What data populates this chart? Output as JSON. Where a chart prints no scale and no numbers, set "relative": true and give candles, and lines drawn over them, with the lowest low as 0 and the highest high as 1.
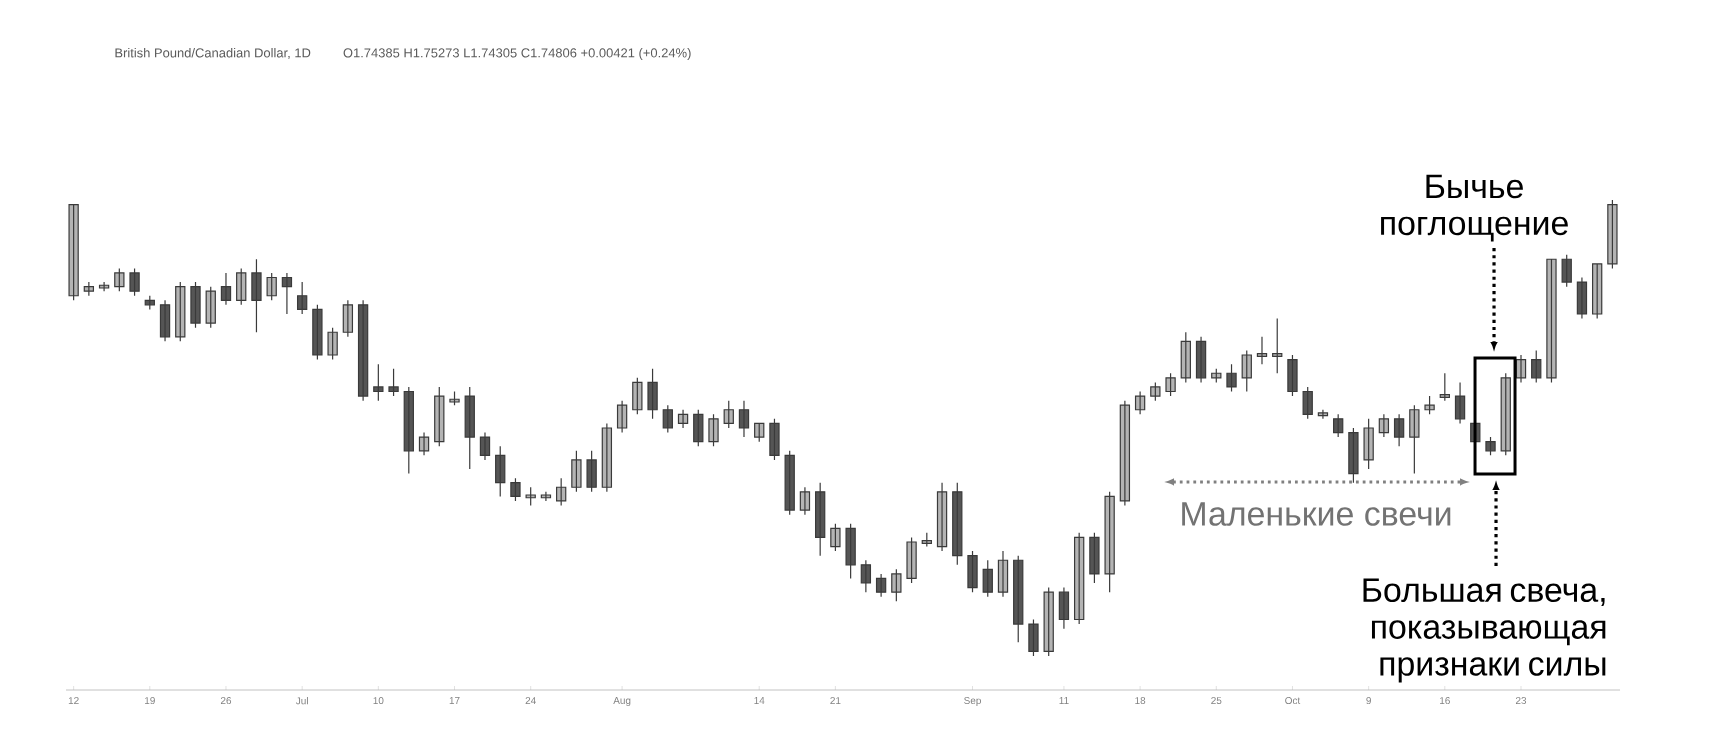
{
  "chart_data": {
    "type": "candlestick",
    "title": "British Pound/Canadian Dollar, 1D",
    "subtitle": "O1.74385 H1.75273 L1.74305 C1.74806 +0.00421 (+0.24%)",
    "relative": true,
    "categories": [
      "12",
      null,
      null,
      null,
      null,
      "19",
      null,
      null,
      null,
      null,
      "26",
      null,
      null,
      null,
      null,
      "Jul",
      null,
      null,
      null,
      null,
      "10",
      null,
      null,
      null,
      null,
      "17",
      null,
      null,
      null,
      null,
      "24",
      null,
      null,
      null,
      null,
      null,
      "Aug",
      null,
      null,
      null,
      null,
      null,
      null,
      null,
      null,
      "14",
      null,
      null,
      null,
      null,
      "21",
      null,
      null,
      null,
      null,
      null,
      null,
      null,
      null,
      "Sep",
      null,
      null,
      null,
      null,
      null,
      "11",
      null,
      null,
      null,
      null,
      "18",
      null,
      null,
      null,
      null,
      "25",
      null,
      null,
      null,
      null,
      "Oct",
      null,
      null,
      null,
      null,
      "9",
      null,
      null,
      null,
      null,
      "16",
      null,
      null,
      null,
      null,
      "23",
      null,
      null,
      null,
      null,
      null,
      null
    ],
    "ohlc": [
      [
        0.79,
        0.99,
        0.78,
        0.99
      ],
      [
        0.8,
        0.82,
        0.79,
        0.81
      ],
      [
        0.81,
        0.82,
        0.8,
        0.81
      ],
      [
        0.81,
        0.85,
        0.8,
        0.84
      ],
      [
        0.84,
        0.85,
        0.79,
        0.8
      ],
      [
        0.78,
        0.79,
        0.76,
        0.77
      ],
      [
        0.77,
        0.78,
        0.69,
        0.7
      ],
      [
        0.7,
        0.82,
        0.69,
        0.81
      ],
      [
        0.81,
        0.82,
        0.72,
        0.73
      ],
      [
        0.73,
        0.81,
        0.72,
        0.8
      ],
      [
        0.81,
        0.84,
        0.77,
        0.78
      ],
      [
        0.78,
        0.85,
        0.77,
        0.84
      ],
      [
        0.84,
        0.87,
        0.71,
        0.78
      ],
      [
        0.79,
        0.84,
        0.78,
        0.83
      ],
      [
        0.83,
        0.84,
        0.75,
        0.81
      ],
      [
        0.79,
        0.82,
        0.75,
        0.76
      ],
      [
        0.76,
        0.77,
        0.65,
        0.66
      ],
      [
        0.66,
        0.72,
        0.65,
        0.71
      ],
      [
        0.71,
        0.78,
        0.7,
        0.77
      ],
      [
        0.77,
        0.78,
        0.56,
        0.57
      ],
      [
        0.59,
        0.64,
        0.56,
        0.58
      ],
      [
        0.59,
        0.63,
        0.57,
        0.58
      ],
      [
        0.58,
        0.59,
        0.4,
        0.45
      ],
      [
        0.45,
        0.49,
        0.44,
        0.48
      ],
      [
        0.47,
        0.59,
        0.46,
        0.57
      ],
      [
        0.56,
        0.58,
        0.55,
        0.56
      ],
      [
        0.57,
        0.59,
        0.41,
        0.48
      ],
      [
        0.48,
        0.49,
        0.43,
        0.44
      ],
      [
        0.44,
        0.46,
        0.35,
        0.38
      ],
      [
        0.38,
        0.39,
        0.34,
        0.35
      ],
      [
        0.35,
        0.37,
        0.33,
        0.35
      ],
      [
        0.35,
        0.36,
        0.34,
        0.35
      ],
      [
        0.34,
        0.39,
        0.33,
        0.37
      ],
      [
        0.37,
        0.45,
        0.36,
        0.43
      ],
      [
        0.43,
        0.45,
        0.36,
        0.37
      ],
      [
        0.37,
        0.51,
        0.36,
        0.5
      ],
      [
        0.5,
        0.56,
        0.49,
        0.55
      ],
      [
        0.54,
        0.61,
        0.53,
        0.6
      ],
      [
        0.6,
        0.63,
        0.52,
        0.54
      ],
      [
        0.54,
        0.55,
        0.49,
        0.5
      ],
      [
        0.51,
        0.54,
        0.5,
        0.53
      ],
      [
        0.53,
        0.54,
        0.46,
        0.47
      ],
      [
        0.47,
        0.53,
        0.46,
        0.52
      ],
      [
        0.51,
        0.56,
        0.5,
        0.54
      ],
      [
        0.54,
        0.56,
        0.48,
        0.5
      ],
      [
        0.48,
        0.51,
        0.47,
        0.51
      ],
      [
        0.51,
        0.52,
        0.43,
        0.44
      ],
      [
        0.44,
        0.45,
        0.31,
        0.32
      ],
      [
        0.32,
        0.37,
        0.31,
        0.36
      ],
      [
        0.36,
        0.38,
        0.22,
        0.26
      ],
      [
        0.24,
        0.29,
        0.23,
        0.28
      ],
      [
        0.28,
        0.29,
        0.17,
        0.2
      ],
      [
        0.2,
        0.21,
        0.14,
        0.16
      ],
      [
        0.17,
        0.18,
        0.13,
        0.14
      ],
      [
        0.14,
        0.19,
        0.12,
        0.18
      ],
      [
        0.17,
        0.26,
        0.16,
        0.25
      ],
      [
        0.25,
        0.27,
        0.24,
        0.25
      ],
      [
        0.24,
        0.38,
        0.23,
        0.36
      ],
      [
        0.36,
        0.38,
        0.2,
        0.22
      ],
      [
        0.22,
        0.23,
        0.14,
        0.15
      ],
      [
        0.19,
        0.21,
        0.13,
        0.14
      ],
      [
        0.14,
        0.23,
        0.13,
        0.21
      ],
      [
        0.21,
        0.22,
        0.03,
        0.07
      ],
      [
        0.07,
        0.08,
        0.0,
        0.01
      ],
      [
        0.01,
        0.15,
        0.0,
        0.14
      ],
      [
        0.14,
        0.15,
        0.06,
        0.08
      ],
      [
        0.08,
        0.27,
        0.07,
        0.26
      ],
      [
        0.26,
        0.27,
        0.16,
        0.18
      ],
      [
        0.18,
        0.36,
        0.14,
        0.35
      ],
      [
        0.34,
        0.56,
        0.33,
        0.55
      ],
      [
        0.54,
        0.58,
        0.53,
        0.57
      ],
      [
        0.57,
        0.6,
        0.56,
        0.59
      ],
      [
        0.58,
        0.62,
        0.57,
        0.61
      ],
      [
        0.61,
        0.71,
        0.6,
        0.69
      ],
      [
        0.69,
        0.7,
        0.6,
        0.61
      ],
      [
        0.61,
        0.63,
        0.6,
        0.62
      ],
      [
        0.62,
        0.64,
        0.58,
        0.59
      ],
      [
        0.61,
        0.67,
        0.58,
        0.66
      ],
      [
        0.66,
        0.7,
        0.64,
        0.66
      ],
      [
        0.66,
        0.74,
        0.62,
        0.66
      ],
      [
        0.65,
        0.66,
        0.57,
        0.58
      ],
      [
        0.58,
        0.59,
        0.52,
        0.53
      ],
      [
        0.53,
        0.54,
        0.52,
        0.53
      ],
      [
        0.52,
        0.53,
        0.48,
        0.49
      ],
      [
        0.49,
        0.5,
        0.38,
        0.4
      ],
      [
        0.43,
        0.52,
        0.41,
        0.5
      ],
      [
        0.49,
        0.53,
        0.48,
        0.52
      ],
      [
        0.52,
        0.53,
        0.46,
        0.48
      ],
      [
        0.48,
        0.55,
        0.4,
        0.54
      ],
      [
        0.54,
        0.57,
        0.53,
        0.55
      ],
      [
        0.57,
        0.62,
        0.56,
        0.57
      ],
      [
        0.57,
        0.6,
        0.51,
        0.52
      ],
      [
        0.51,
        0.52,
        0.46,
        0.47
      ],
      [
        0.47,
        0.48,
        0.44,
        0.45
      ],
      [
        0.45,
        0.62,
        0.44,
        0.61
      ],
      [
        0.61,
        0.66,
        0.6,
        0.65
      ],
      [
        0.65,
        0.67,
        0.6,
        0.61
      ],
      [
        0.61,
        0.87,
        0.6,
        0.87
      ],
      [
        0.87,
        0.88,
        0.81,
        0.82
      ],
      [
        0.82,
        0.83,
        0.74,
        0.75
      ],
      [
        0.75,
        0.86,
        0.74,
        0.86
      ],
      [
        0.86,
        1.0,
        0.85,
        0.99
      ]
    ],
    "annotations": [
      "Бычье поглощение",
      "Маленькие свечи",
      "Большая свеча, показывающая признаки силы"
    ]
  }
}
